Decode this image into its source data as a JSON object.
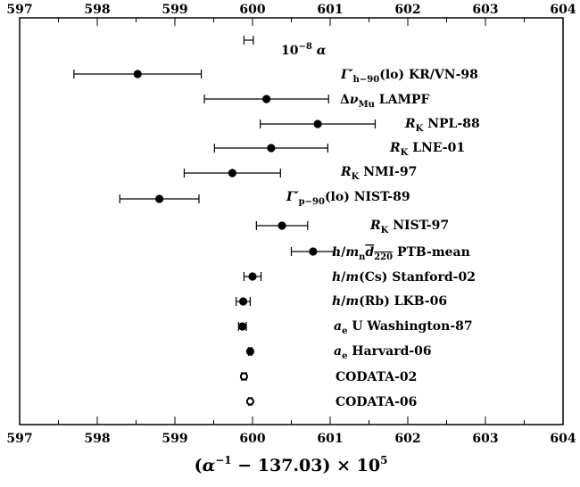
{
  "chart_data": {
    "type": "scatter",
    "subtype": "forest-plot-with-horizontal-error-bars",
    "xlabel": "(α⁻¹ − 137.03) × 10⁵",
    "xlim": [
      597,
      604
    ],
    "xticks": [
      597,
      598,
      599,
      600,
      601,
      602,
      603,
      604
    ],
    "tick_labels": [
      "597",
      "598",
      "599",
      "600",
      "601",
      "602",
      "603",
      "604"
    ],
    "series": [
      {
        "points": [
          {
            "label": "10⁻⁸ α",
            "value": 599.95,
            "lower": 599.89,
            "upper": 600.01,
            "marker": "none"
          },
          {
            "label": "Γ′h−90(lo) KR/VN-98",
            "value": 598.52,
            "lower": 597.7,
            "upper": 599.34,
            "marker": "filled"
          },
          {
            "label": "ΔνMu LAMPF",
            "value": 600.18,
            "lower": 599.38,
            "upper": 600.98,
            "marker": "filled"
          },
          {
            "label": "RK NPL-88",
            "value": 600.84,
            "lower": 600.1,
            "upper": 601.58,
            "marker": "filled"
          },
          {
            "label": "RK LNE-01",
            "value": 600.24,
            "lower": 599.51,
            "upper": 600.97,
            "marker": "filled"
          },
          {
            "label": "RK NMI-97",
            "value": 599.74,
            "lower": 599.12,
            "upper": 600.36,
            "marker": "filled"
          },
          {
            "label": "Γ′p−90(lo) NIST-89",
            "value": 598.8,
            "lower": 598.29,
            "upper": 599.31,
            "marker": "filled"
          },
          {
            "label": "RK NIST-97",
            "value": 600.38,
            "lower": 600.05,
            "upper": 600.71,
            "marker": "filled"
          },
          {
            "label": "h/mn d220 PTB-mean",
            "value": 600.78,
            "lower": 600.5,
            "upper": 601.06,
            "marker": "filled"
          },
          {
            "label": "h/m(Cs) Stanford-02",
            "value": 600.0,
            "lower": 599.89,
            "upper": 600.11,
            "marker": "filled"
          },
          {
            "label": "h/m(Rb) LKB-06",
            "value": 599.88,
            "lower": 599.79,
            "upper": 599.97,
            "marker": "filled"
          },
          {
            "label": "ae U Washington-87",
            "value": 599.87,
            "lower": 599.82,
            "upper": 599.92,
            "marker": "filled"
          },
          {
            "label": "ae Harvard-06",
            "value": 599.97,
            "lower": 599.95,
            "upper": 599.99,
            "marker": "filled"
          },
          {
            "label": "CODATA-02",
            "value": 599.89,
            "lower": 599.86,
            "upper": 599.92,
            "marker": "open"
          },
          {
            "label": "CODATA-06",
            "value": 599.97,
            "lower": 599.95,
            "upper": 599.99,
            "marker": "open"
          }
        ]
      }
    ],
    "grid": false
  }
}
